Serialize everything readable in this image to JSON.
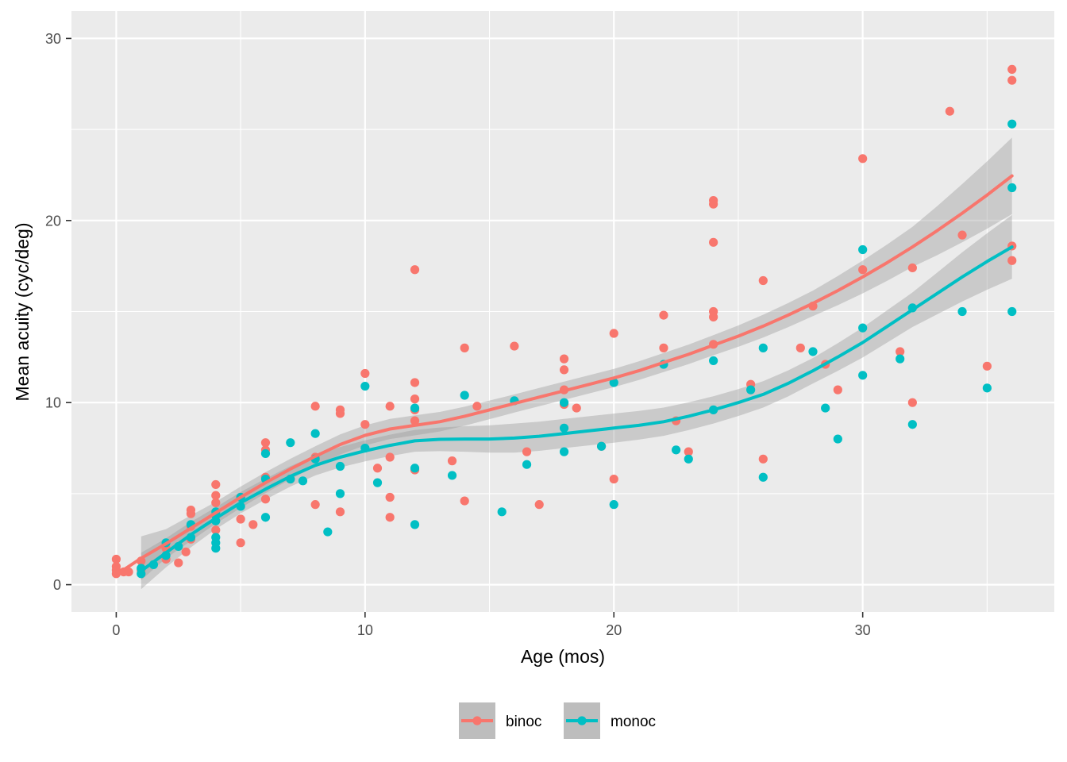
{
  "chart_data": {
    "type": "scatter",
    "xlabel": "Age (mos)",
    "ylabel": "Mean acuity (cyc/deg)",
    "xlim": [
      -1.8,
      37.7
    ],
    "ylim": [
      -1.5,
      31.5
    ],
    "x_ticks": [
      0,
      10,
      20,
      30
    ],
    "y_ticks": [
      0,
      10,
      20,
      30
    ],
    "grid": true,
    "legend_position": "bottom",
    "series": [
      {
        "name": "binoc",
        "color": "#F8766D",
        "points": [
          [
            0,
            1.4
          ],
          [
            0,
            1.0
          ],
          [
            0,
            0.8
          ],
          [
            0,
            0.6
          ],
          [
            0.3,
            0.7
          ],
          [
            0.5,
            0.7
          ],
          [
            1,
            1.3
          ],
          [
            1,
            0.8
          ],
          [
            2,
            1.4
          ],
          [
            2,
            2.0
          ],
          [
            2.5,
            1.2
          ],
          [
            2.8,
            1.8
          ],
          [
            3,
            2.5
          ],
          [
            3,
            3.2
          ],
          [
            3,
            3.9
          ],
          [
            3,
            4.1
          ],
          [
            4,
            3.0
          ],
          [
            4,
            4.5
          ],
          [
            4,
            4.9
          ],
          [
            4,
            5.5
          ],
          [
            5,
            2.3
          ],
          [
            5,
            3.6
          ],
          [
            5,
            4.8
          ],
          [
            5.5,
            3.3
          ],
          [
            6,
            4.7
          ],
          [
            6,
            5.9
          ],
          [
            6,
            7.4
          ],
          [
            6,
            7.8
          ],
          [
            7,
            5.8
          ],
          [
            8,
            4.4
          ],
          [
            8,
            7.0
          ],
          [
            8,
            9.8
          ],
          [
            9,
            4.0
          ],
          [
            9,
            9.4
          ],
          [
            9,
            9.6
          ],
          [
            10,
            8.8
          ],
          [
            10,
            11.6
          ],
          [
            10.5,
            6.4
          ],
          [
            11,
            3.7
          ],
          [
            11,
            4.8
          ],
          [
            11,
            7.0
          ],
          [
            11,
            9.8
          ],
          [
            12,
            6.3
          ],
          [
            12,
            9.0
          ],
          [
            12,
            9.6
          ],
          [
            12,
            10.2
          ],
          [
            12,
            11.1
          ],
          [
            12,
            17.3
          ],
          [
            13.5,
            6.8
          ],
          [
            14,
            4.6
          ],
          [
            14,
            13.0
          ],
          [
            14.5,
            9.8
          ],
          [
            16,
            13.1
          ],
          [
            16.5,
            7.3
          ],
          [
            17,
            4.4
          ],
          [
            18,
            9.9
          ],
          [
            18,
            10.7
          ],
          [
            18,
            11.8
          ],
          [
            18,
            12.4
          ],
          [
            18.5,
            9.7
          ],
          [
            19.5,
            7.6
          ],
          [
            20,
            5.8
          ],
          [
            20,
            13.8
          ],
          [
            22,
            13.0
          ],
          [
            22,
            14.8
          ],
          [
            22.5,
            9.0
          ],
          [
            23,
            7.3
          ],
          [
            24,
            13.2
          ],
          [
            24,
            14.7
          ],
          [
            24,
            15.0
          ],
          [
            24,
            18.8
          ],
          [
            24,
            20.9
          ],
          [
            24,
            21.1
          ],
          [
            25.5,
            11.0
          ],
          [
            26,
            6.9
          ],
          [
            26,
            16.7
          ],
          [
            27.5,
            13.0
          ],
          [
            28,
            15.3
          ],
          [
            28.5,
            12.1
          ],
          [
            29,
            10.7
          ],
          [
            30,
            17.3
          ],
          [
            30,
            23.4
          ],
          [
            31.5,
            12.8
          ],
          [
            32,
            10.0
          ],
          [
            32,
            17.4
          ],
          [
            33.5,
            26.0
          ],
          [
            34,
            19.2
          ],
          [
            35,
            12.0
          ],
          [
            36,
            17.8
          ],
          [
            36,
            18.6
          ],
          [
            36,
            27.7
          ],
          [
            36,
            28.3
          ]
        ],
        "smooth": [
          [
            0,
            0.55
          ],
          [
            1,
            1.45
          ],
          [
            2,
            2.25
          ],
          [
            3,
            3.1
          ],
          [
            4,
            3.95
          ],
          [
            5,
            4.8
          ],
          [
            6,
            5.6
          ],
          [
            7,
            6.35
          ],
          [
            8,
            7.05
          ],
          [
            9,
            7.7
          ],
          [
            10,
            8.2
          ],
          [
            11,
            8.55
          ],
          [
            12,
            8.75
          ],
          [
            13,
            8.95
          ],
          [
            14,
            9.25
          ],
          [
            15,
            9.6
          ],
          [
            16,
            9.95
          ],
          [
            17,
            10.3
          ],
          [
            18,
            10.65
          ],
          [
            19,
            11.0
          ],
          [
            20,
            11.35
          ],
          [
            21,
            11.75
          ],
          [
            22,
            12.2
          ],
          [
            23,
            12.65
          ],
          [
            24,
            13.15
          ],
          [
            25,
            13.65
          ],
          [
            26,
            14.2
          ],
          [
            27,
            14.8
          ],
          [
            28,
            15.45
          ],
          [
            29,
            16.15
          ],
          [
            30,
            16.9
          ],
          [
            31,
            17.7
          ],
          [
            32,
            18.55
          ],
          [
            33,
            19.45
          ],
          [
            34,
            20.4
          ],
          [
            35,
            21.4
          ],
          [
            36,
            22.45
          ]
        ],
        "band_halfwidth": [
          [
            1,
            1.2
          ],
          [
            2,
            0.8
          ],
          [
            4,
            0.6
          ],
          [
            8,
            0.55
          ],
          [
            12,
            0.55
          ],
          [
            16,
            0.5
          ],
          [
            20,
            0.5
          ],
          [
            24,
            0.55
          ],
          [
            28,
            0.7
          ],
          [
            32,
            1.1
          ],
          [
            36,
            2.1
          ]
        ]
      },
      {
        "name": "monoc",
        "color": "#00BFC4",
        "points": [
          [
            1,
            0.6
          ],
          [
            1,
            0.9
          ],
          [
            1.5,
            1.1
          ],
          [
            2,
            1.6
          ],
          [
            2,
            2.3
          ],
          [
            2.5,
            2.1
          ],
          [
            3,
            2.6
          ],
          [
            3,
            3.3
          ],
          [
            4,
            2.0
          ],
          [
            4,
            2.3
          ],
          [
            4,
            2.6
          ],
          [
            4,
            3.5
          ],
          [
            4,
            3.8
          ],
          [
            4,
            4.0
          ],
          [
            5,
            4.3
          ],
          [
            5,
            4.8
          ],
          [
            6,
            3.7
          ],
          [
            6,
            5.8
          ],
          [
            6,
            7.2
          ],
          [
            7,
            5.8
          ],
          [
            7,
            7.8
          ],
          [
            7.5,
            5.7
          ],
          [
            8,
            6.9
          ],
          [
            8,
            8.3
          ],
          [
            8.5,
            2.9
          ],
          [
            9,
            5.0
          ],
          [
            9,
            6.5
          ],
          [
            10,
            7.5
          ],
          [
            10,
            10.9
          ],
          [
            10.5,
            5.6
          ],
          [
            12,
            3.3
          ],
          [
            12,
            6.4
          ],
          [
            12,
            9.7
          ],
          [
            13.5,
            6.0
          ],
          [
            14,
            10.4
          ],
          [
            15.5,
            4.0
          ],
          [
            16,
            10.1
          ],
          [
            16.5,
            6.6
          ],
          [
            18,
            7.3
          ],
          [
            18,
            8.6
          ],
          [
            18,
            10.0
          ],
          [
            19.5,
            7.6
          ],
          [
            20,
            4.4
          ],
          [
            20,
            11.1
          ],
          [
            22,
            12.1
          ],
          [
            22.5,
            7.4
          ],
          [
            23,
            6.9
          ],
          [
            24,
            9.6
          ],
          [
            24,
            12.3
          ],
          [
            25.5,
            10.7
          ],
          [
            26,
            5.9
          ],
          [
            26,
            13.0
          ],
          [
            28,
            12.8
          ],
          [
            28.5,
            9.7
          ],
          [
            29,
            8.0
          ],
          [
            30,
            11.5
          ],
          [
            30,
            14.1
          ],
          [
            30,
            18.4
          ],
          [
            31.5,
            12.4
          ],
          [
            32,
            8.8
          ],
          [
            32,
            15.2
          ],
          [
            34,
            15.0
          ],
          [
            35,
            10.8
          ],
          [
            36,
            15.0
          ],
          [
            36,
            21.8
          ],
          [
            36,
            25.3
          ]
        ],
        "smooth": [
          [
            1,
            0.75
          ],
          [
            2,
            1.75
          ],
          [
            3,
            2.75
          ],
          [
            4,
            3.65
          ],
          [
            5,
            4.5
          ],
          [
            6,
            5.25
          ],
          [
            7,
            5.95
          ],
          [
            8,
            6.55
          ],
          [
            9,
            7.0
          ],
          [
            10,
            7.35
          ],
          [
            11,
            7.65
          ],
          [
            12,
            7.9
          ],
          [
            13,
            7.98
          ],
          [
            14,
            8.0
          ],
          [
            15,
            8.0
          ],
          [
            16,
            8.05
          ],
          [
            17,
            8.15
          ],
          [
            18,
            8.3
          ],
          [
            19,
            8.45
          ],
          [
            20,
            8.6
          ],
          [
            21,
            8.75
          ],
          [
            22,
            8.95
          ],
          [
            23,
            9.25
          ],
          [
            24,
            9.6
          ],
          [
            25,
            10.0
          ],
          [
            26,
            10.45
          ],
          [
            27,
            11.05
          ],
          [
            28,
            11.75
          ],
          [
            29,
            12.5
          ],
          [
            30,
            13.3
          ],
          [
            31,
            14.2
          ],
          [
            32,
            15.1
          ],
          [
            33,
            16.0
          ],
          [
            34,
            16.9
          ],
          [
            35,
            17.75
          ],
          [
            36,
            18.55
          ]
        ],
        "band_halfwidth": [
          [
            1,
            1.0
          ],
          [
            2,
            0.8
          ],
          [
            4,
            0.6
          ],
          [
            8,
            0.55
          ],
          [
            12,
            0.6
          ],
          [
            16,
            0.8
          ],
          [
            20,
            0.8
          ],
          [
            24,
            0.75
          ],
          [
            28,
            0.7
          ],
          [
            32,
            0.95
          ],
          [
            36,
            1.75
          ]
        ]
      }
    ]
  }
}
